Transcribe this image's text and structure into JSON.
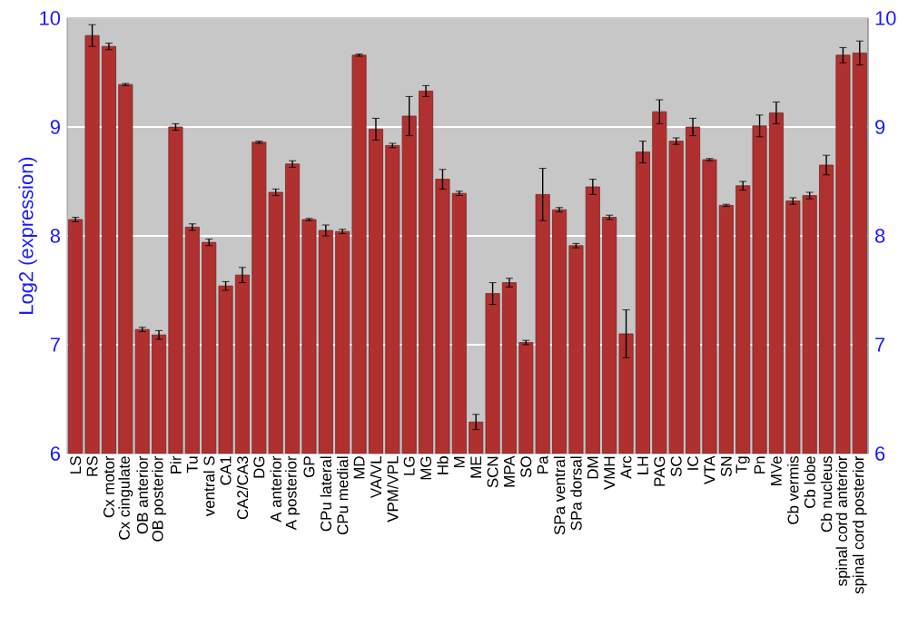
{
  "chart_data": {
    "type": "bar",
    "ylabel": "Log2 (expression)",
    "categories": [
      "LS",
      "RS",
      "Cx motor",
      "Cx cingulate",
      "OB anterior",
      "OB posterior",
      "Pir",
      "Tu",
      "ventral S",
      "CA1",
      "CA2/CA3",
      "DG",
      "A anterior",
      "A posterior",
      "GP",
      "CPu lateral",
      "CPu medial",
      "MD",
      "VA/VL",
      "VPM/VPL",
      "LG",
      "MG",
      "Hb",
      "M",
      "ME",
      "SCN",
      "MPA",
      "SO",
      "Pa",
      "SPa ventral",
      "SPa dorsal",
      "DM",
      "VMH",
      "Arc",
      "LH",
      "PAG",
      "SC",
      "IC",
      "VTA",
      "SN",
      "Tg",
      "Pn",
      "MVe",
      "Cb vermis",
      "Cb lobe",
      "Cb nucleus",
      "spinal cord anterior",
      "spinal cord posterior"
    ],
    "values": [
      8.15,
      9.84,
      9.74,
      9.39,
      7.14,
      7.09,
      9.0,
      8.08,
      7.94,
      7.54,
      7.64,
      8.86,
      8.4,
      8.66,
      8.15,
      8.05,
      8.04,
      9.66,
      8.98,
      8.83,
      9.1,
      9.33,
      8.52,
      8.39,
      6.29,
      7.47,
      7.57,
      7.02,
      8.38,
      8.24,
      7.91,
      8.45,
      8.17,
      7.1,
      8.77,
      9.14,
      8.87,
      9.0,
      8.7,
      8.28,
      8.46,
      9.01,
      9.13,
      8.32,
      8.37,
      8.65,
      9.66,
      9.68
    ],
    "errors": [
      0.02,
      0.1,
      0.03,
      0.01,
      0.02,
      0.04,
      0.03,
      0.03,
      0.03,
      0.04,
      0.07,
      0.01,
      0.03,
      0.03,
      0.01,
      0.05,
      0.02,
      0.01,
      0.1,
      0.02,
      0.18,
      0.05,
      0.09,
      0.02,
      0.07,
      0.1,
      0.04,
      0.02,
      0.24,
      0.02,
      0.02,
      0.07,
      0.02,
      0.22,
      0.1,
      0.11,
      0.03,
      0.08,
      0.01,
      0.01,
      0.04,
      0.1,
      0.1,
      0.03,
      0.03,
      0.09,
      0.07,
      0.11
    ],
    "color": "#b03030",
    "ylim": [
      6,
      10
    ],
    "yticks": [
      6,
      7,
      8,
      9,
      10
    ],
    "y2lim": [
      6,
      10
    ],
    "y2ticks": [
      6,
      7,
      8,
      9,
      10
    ],
    "grid": "y"
  }
}
